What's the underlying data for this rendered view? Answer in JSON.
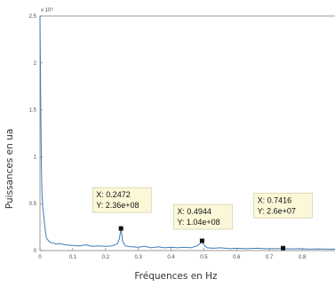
{
  "chart_data": {
    "type": "line",
    "xlabel": "Fréquences en Hz",
    "ylabel": "Puissances en ua",
    "y_exponent": "x 10⁹",
    "xlim": [
      0,
      0.9
    ],
    "ylim": [
      0,
      2.5
    ],
    "x_ticks": [
      "0",
      "0.1",
      "0.2",
      "0.3",
      "0.4",
      "0.5",
      "0.6",
      "0.7",
      "0.8"
    ],
    "y_ticks": [
      "0",
      "0.5",
      "1",
      "1.5",
      "2",
      "2.5"
    ],
    "series_color": "#3d7fb8",
    "series": [
      {
        "x": [
          0,
          0.002,
          0.004,
          0.006,
          0.008,
          0.012,
          0.016,
          0.02,
          0.03,
          0.04,
          0.05,
          0.06,
          0.08,
          0.1,
          0.12,
          0.14,
          0.16,
          0.18,
          0.2,
          0.22,
          0.235,
          0.242,
          0.2472,
          0.252,
          0.26,
          0.28,
          0.3,
          0.32,
          0.34,
          0.36,
          0.38,
          0.4,
          0.42,
          0.44,
          0.46,
          0.48,
          0.49,
          0.4944,
          0.5,
          0.51,
          0.53,
          0.55,
          0.58,
          0.6,
          0.63,
          0.66,
          0.69,
          0.72,
          0.735,
          0.7416,
          0.748,
          0.76,
          0.79,
          0.82,
          0.85,
          0.88,
          0.9
        ],
        "y": [
          2.5,
          1.7,
          0.95,
          0.62,
          0.48,
          0.35,
          0.22,
          0.13,
          0.09,
          0.08,
          0.07,
          0.075,
          0.06,
          0.055,
          0.05,
          0.06,
          0.045,
          0.05,
          0.045,
          0.05,
          0.07,
          0.12,
          0.236,
          0.1,
          0.05,
          0.04,
          0.035,
          0.045,
          0.03,
          0.04,
          0.03,
          0.035,
          0.03,
          0.035,
          0.03,
          0.05,
          0.08,
          0.104,
          0.06,
          0.03,
          0.025,
          0.03,
          0.02,
          0.025,
          0.02,
          0.025,
          0.02,
          0.02,
          0.023,
          0.026,
          0.02,
          0.018,
          0.02,
          0.015,
          0.018,
          0.015,
          0.015
        ]
      }
    ],
    "datatips": [
      {
        "x": 0.2472,
        "y": 0.236,
        "xtext": "X: 0.2472",
        "ytext": "Y: 2.36e+08"
      },
      {
        "x": 0.4944,
        "y": 0.104,
        "xtext": "X: 0.4944",
        "ytext": "Y: 1.04e+08"
      },
      {
        "x": 0.7416,
        "y": 0.026,
        "xtext": "X: 0.7416",
        "ytext": "Y: 2.6e+07"
      }
    ]
  }
}
